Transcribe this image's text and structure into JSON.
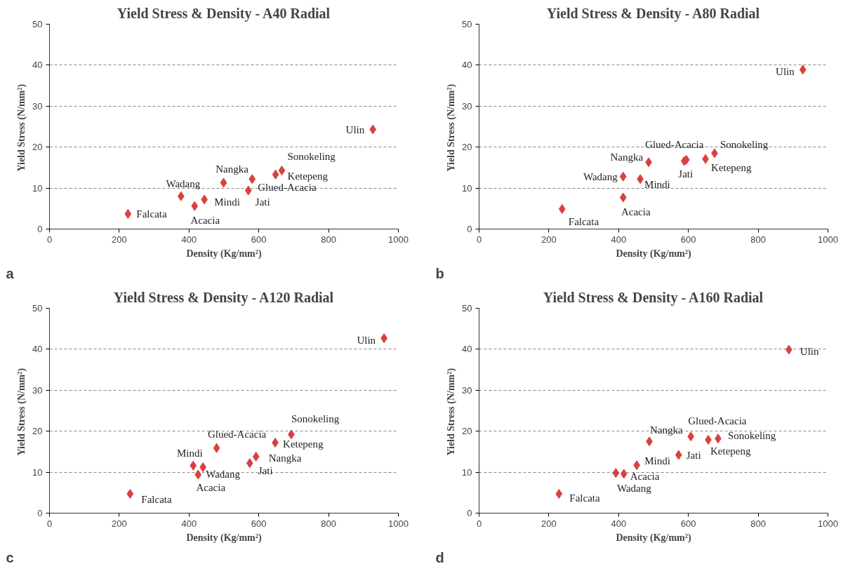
{
  "chart_data": [
    {
      "type": "scatter",
      "title": "Yield Stress & Density - A40 Radial",
      "xlabel": "Density (Kg/mm²)",
      "ylabel": "Yield Stress  (N/mm²)",
      "marker": "diamond",
      "grid": "y",
      "xlim": [
        0,
        1000
      ],
      "ylim": [
        0,
        50
      ],
      "xticks": [
        0,
        200,
        400,
        600,
        800,
        1000
      ],
      "yticks": [
        0,
        10,
        20,
        30,
        40,
        50
      ],
      "series": [
        {
          "color": "#d9413f",
          "x": [
            225,
            377,
            416,
            444,
            499,
            581,
            570,
            648,
            666,
            927
          ],
          "values": [
            3.7,
            8.0,
            5.6,
            7.2,
            11.3,
            12.2,
            9.4,
            13.3,
            14.3,
            24.3
          ]
        }
      ],
      "annotations": [
        "a",
        {
          "text": "Falcata",
          "x": 225,
          "y": 3.7
        },
        {
          "text": "Wadang",
          "x": 377,
          "y": 8.0
        },
        {
          "text": "Acacia",
          "x": 416,
          "y": 5.6
        },
        {
          "text": "Mindi",
          "x": 444,
          "y": 7.2
        },
        {
          "text": "Nangka",
          "x": 499,
          "y": 11.3
        },
        {
          "text": "Glued-Acacia",
          "x": 581,
          "y": 12.2
        },
        {
          "text": "Jati",
          "x": 570,
          "y": 9.4
        },
        {
          "text": "Ketepeng",
          "x": 648,
          "y": 13.3
        },
        {
          "text": "Sonokeling",
          "x": 666,
          "y": 14.3
        },
        {
          "text": "Ulin",
          "x": 927,
          "y": 24.3
        }
      ]
    },
    {
      "type": "scatter",
      "title": "Yield Stress & Density - A80 Radial",
      "xlabel": "Density (Kg/mm²)",
      "ylabel": "Yield Stress  (N/mm²)",
      "marker": "diamond",
      "grid": "y",
      "xlim": [
        0,
        1000
      ],
      "ylim": [
        0,
        50
      ],
      "xticks": [
        0,
        200,
        400,
        600,
        800,
        1000
      ],
      "yticks": [
        0,
        10,
        20,
        30,
        40,
        50
      ],
      "series": [
        {
          "color": "#d9413f",
          "x": [
            238,
            413,
            413,
            462,
            486,
            594,
            588,
            649,
            675,
            928
          ],
          "values": [
            4.9,
            12.8,
            7.7,
            12.2,
            16.3,
            16.9,
            16.6,
            17.1,
            18.5,
            38.9
          ]
        }
      ],
      "annotations": [
        "b",
        {
          "text": "Falcata",
          "x": 238,
          "y": 4.9
        },
        {
          "text": "Wadang",
          "x": 413,
          "y": 12.8
        },
        {
          "text": "Acacia",
          "x": 413,
          "y": 7.7
        },
        {
          "text": "Mindi",
          "x": 462,
          "y": 12.2
        },
        {
          "text": "Nangka",
          "x": 486,
          "y": 16.3
        },
        {
          "text": "Glued-Acacia",
          "x": 594,
          "y": 16.9
        },
        {
          "text": "Jati",
          "x": 588,
          "y": 16.6
        },
        {
          "text": "Ketepeng",
          "x": 649,
          "y": 17.1
        },
        {
          "text": "Sonokeling",
          "x": 675,
          "y": 18.5
        },
        {
          "text": "Ulin",
          "x": 928,
          "y": 38.9
        }
      ]
    },
    {
      "type": "scatter",
      "title": "Yield Stress & Density - A120 Radial",
      "xlabel": "Density (Kg/mm²)",
      "ylabel": "Yield Stress  (N/mm²)",
      "marker": "diamond",
      "grid": "y",
      "xlim": [
        0,
        1000
      ],
      "ylim": [
        0,
        50
      ],
      "xticks": [
        0,
        200,
        400,
        600,
        800,
        1000
      ],
      "yticks": [
        0,
        10,
        20,
        30,
        40,
        50
      ],
      "series": [
        {
          "color": "#d9413f",
          "x": [
            231,
            440,
            426,
            412,
            592,
            479,
            574,
            647,
            693,
            959
          ],
          "values": [
            4.7,
            11.2,
            9.4,
            11.6,
            13.8,
            15.9,
            12.2,
            17.2,
            19.2,
            42.7
          ]
        }
      ],
      "annotations": [
        "c",
        {
          "text": "Falcata",
          "x": 231,
          "y": 4.7
        },
        {
          "text": "Wadang",
          "x": 440,
          "y": 11.2
        },
        {
          "text": "Acacia",
          "x": 426,
          "y": 9.4
        },
        {
          "text": "Mindi",
          "x": 412,
          "y": 11.6
        },
        {
          "text": "Nangka",
          "x": 592,
          "y": 13.8
        },
        {
          "text": "Glued-Acacia",
          "x": 479,
          "y": 15.9
        },
        {
          "text": "Jati",
          "x": 574,
          "y": 12.2
        },
        {
          "text": "Ketepeng",
          "x": 647,
          "y": 17.2
        },
        {
          "text": "Sonokeling",
          "x": 693,
          "y": 19.2
        },
        {
          "text": "Ulin",
          "x": 959,
          "y": 42.7
        }
      ]
    },
    {
      "type": "scatter",
      "title": "Yield Stress & Density - A160 Radial",
      "xlabel": "Density (Kg/mm²)",
      "ylabel": "Yield Stress  (N/mm²)",
      "marker": "diamond",
      "grid": "y",
      "xlim": [
        0,
        1000
      ],
      "ylim": [
        0,
        50
      ],
      "xticks": [
        0,
        200,
        400,
        600,
        800,
        1000
      ],
      "yticks": [
        0,
        10,
        20,
        30,
        40,
        50
      ],
      "series": [
        {
          "color": "#d9413f",
          "x": [
            229,
            392,
            415,
            452,
            488,
            607,
            572,
            657,
            685,
            888
          ],
          "values": [
            4.7,
            9.8,
            9.6,
            11.7,
            17.5,
            18.7,
            14.2,
            17.9,
            18.2,
            39.9
          ]
        }
      ],
      "annotations": [
        "d",
        {
          "text": "Falcata",
          "x": 229,
          "y": 4.7
        },
        {
          "text": "Wadang",
          "x": 392,
          "y": 9.8
        },
        {
          "text": "Acacia",
          "x": 415,
          "y": 9.6
        },
        {
          "text": "Mindi",
          "x": 452,
          "y": 11.7
        },
        {
          "text": "Nangka",
          "x": 488,
          "y": 17.5
        },
        {
          "text": "Glued-Acacia",
          "x": 607,
          "y": 18.7
        },
        {
          "text": "Jati",
          "x": 572,
          "y": 14.2
        },
        {
          "text": "Ketepeng",
          "x": 657,
          "y": 17.9
        },
        {
          "text": "Sonokeling",
          "x": 685,
          "y": 18.2
        },
        {
          "text": "Ulin",
          "x": 888,
          "y": 39.9
        }
      ]
    }
  ]
}
